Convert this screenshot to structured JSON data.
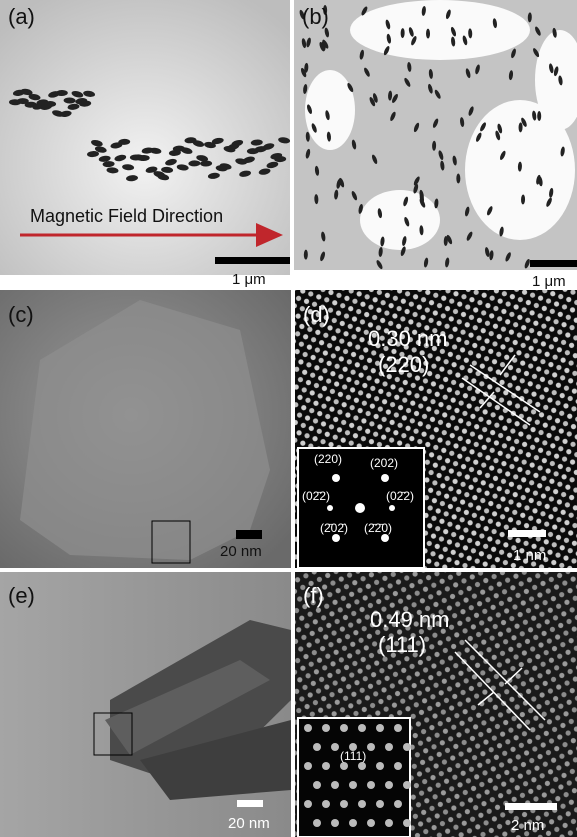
{
  "panels": {
    "a": {
      "label": "(a)",
      "caption": "Magnetic Field Direction",
      "scale": "1 μm"
    },
    "b": {
      "label": "(b)",
      "scale": "1 μm"
    },
    "c": {
      "label": "(c)",
      "scale": "20 nm"
    },
    "d": {
      "label": "(d)",
      "spacing": "0.30 nm",
      "plane": "(220)",
      "inset": [
        "(220)",
        "(202)",
        "(02̄2)",
        "(02̄2)",
        "(2̄02̄)",
        "(2̄2̄0)"
      ],
      "scale": "1 nm"
    },
    "e": {
      "label": "(e)",
      "scale": "20 nm"
    },
    "f": {
      "label": "(f)",
      "spacing": "0.49 nm",
      "plane": "(111)",
      "inset": [
        "(111)"
      ],
      "scale": "2 nm"
    }
  }
}
